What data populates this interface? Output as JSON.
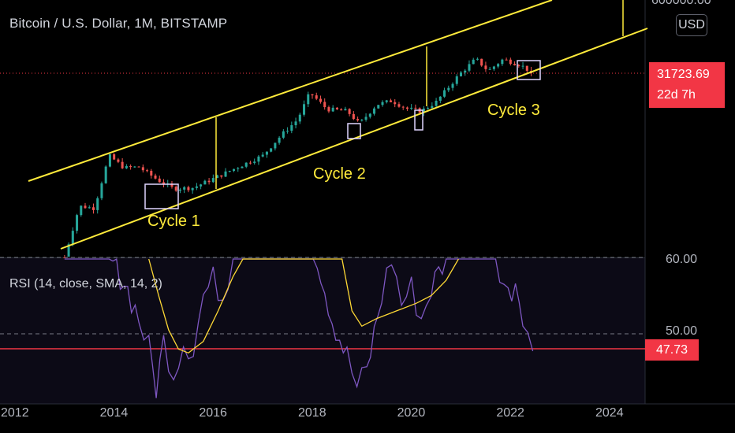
{
  "header": {
    "title": "Bitcoin / U.S. Dollar, 1M, BITSTAMP",
    "currency_badge": "USD"
  },
  "price_axis": {
    "top_label": "600000.00",
    "current_price": "31723.69",
    "countdown": "22d 7h"
  },
  "rsi": {
    "title": "RSI (14, close, SMA, 14, 2)",
    "label_60": "60.00",
    "label_50": "50.00",
    "current_value": "47.73"
  },
  "annotations": {
    "cycle1": "Cycle 1",
    "cycle2": "Cycle 2",
    "cycle3": "Cycle 3"
  },
  "colors": {
    "background": "#000000",
    "up_candle": "#26a69a",
    "down_candle": "#ef5350",
    "channel": "#ffeb3b",
    "rsi_line": "#7e57c2",
    "rsi_ma": "#fdd835",
    "price_marker": "#f23645"
  },
  "chart_data": {
    "type": "candlestick",
    "symbol": "Bitcoin / U.S. Dollar",
    "interval": "1M",
    "exchange": "BITSTAMP",
    "x_ticks": [
      "2012",
      "2014",
      "2016",
      "2018",
      "2020",
      "2022",
      "2024"
    ],
    "y_scale": "log",
    "last_price": 31723.69,
    "close_path": [
      [
        2013.0,
        14
      ],
      [
        2013.3,
        120
      ],
      [
        2013.6,
        110
      ],
      [
        2013.9,
        1000
      ],
      [
        2014.2,
        600
      ],
      [
        2014.5,
        620
      ],
      [
        2014.9,
        350
      ],
      [
        2015.2,
        250
      ],
      [
        2015.6,
        260
      ],
      [
        2016.0,
        380
      ],
      [
        2016.5,
        620
      ],
      [
        2017.0,
        1000
      ],
      [
        2017.4,
        2500
      ],
      [
        2017.7,
        4500
      ],
      [
        2017.95,
        14000
      ],
      [
        2018.3,
        7000
      ],
      [
        2018.7,
        6500
      ],
      [
        2018.95,
        3800
      ],
      [
        2019.3,
        8500
      ],
      [
        2019.6,
        10000
      ],
      [
        2019.9,
        7200
      ],
      [
        2020.2,
        6500
      ],
      [
        2020.5,
        9500
      ],
      [
        2020.95,
        29000
      ],
      [
        2021.3,
        58000
      ],
      [
        2021.55,
        35000
      ],
      [
        2021.85,
        57000
      ],
      [
        2022.2,
        45000
      ],
      [
        2022.45,
        31723.69
      ]
    ],
    "rsi_path": [
      [
        2013.0,
        60
      ],
      [
        2013.3,
        60
      ],
      [
        2013.6,
        60
      ],
      [
        2013.9,
        60
      ],
      [
        2014.2,
        57
      ],
      [
        2014.5,
        52
      ],
      [
        2014.7,
        48
      ],
      [
        2014.85,
        43
      ],
      [
        2015.0,
        49
      ],
      [
        2015.2,
        45
      ],
      [
        2015.4,
        49
      ],
      [
        2015.6,
        48
      ],
      [
        2015.8,
        55
      ],
      [
        2016.0,
        57
      ],
      [
        2016.2,
        55
      ],
      [
        2016.4,
        60
      ],
      [
        2016.8,
        60
      ],
      [
        2018.1,
        60
      ],
      [
        2018.4,
        52
      ],
      [
        2018.7,
        47
      ],
      [
        2018.9,
        43
      ],
      [
        2019.1,
        45
      ],
      [
        2019.4,
        55
      ],
      [
        2019.6,
        60
      ],
      [
        2019.8,
        54
      ],
      [
        2020.0,
        56
      ],
      [
        2020.2,
        52
      ],
      [
        2020.4,
        56
      ],
      [
        2020.7,
        60
      ],
      [
        2021.7,
        60
      ],
      [
        2021.95,
        55
      ],
      [
        2022.1,
        57
      ],
      [
        2022.25,
        53
      ],
      [
        2022.45,
        47.73
      ]
    ],
    "rsi_ma_path": [
      [
        2014.7,
        60
      ],
      [
        2014.9,
        55
      ],
      [
        2015.1,
        50.5
      ],
      [
        2015.3,
        48
      ],
      [
        2015.5,
        47.5
      ],
      [
        2015.8,
        49
      ],
      [
        2016.1,
        53
      ],
      [
        2016.4,
        57.5
      ],
      [
        2016.6,
        60
      ],
      [
        2018.6,
        60
      ],
      [
        2018.8,
        53
      ],
      [
        2019.0,
        51
      ],
      [
        2019.3,
        52
      ],
      [
        2019.7,
        53
      ],
      [
        2020.1,
        54
      ],
      [
        2020.4,
        55
      ],
      [
        2020.7,
        57
      ],
      [
        2020.95,
        60
      ]
    ],
    "rsi_levels": [
      60,
      50
    ],
    "rsi_current": 47.73
  }
}
